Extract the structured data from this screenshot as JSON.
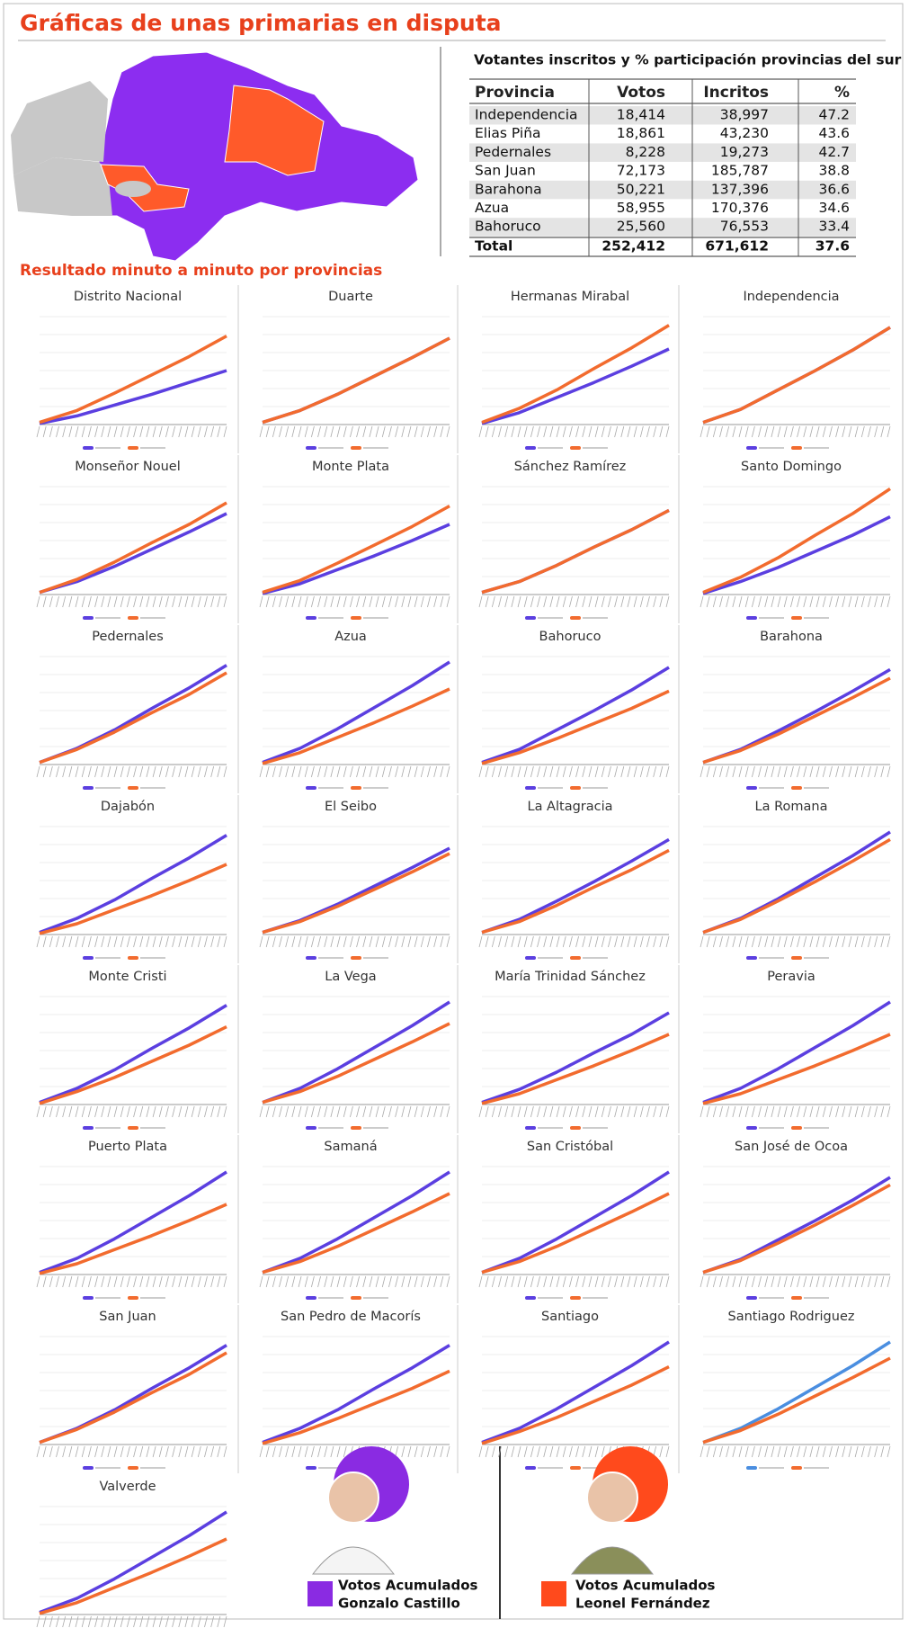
{
  "title": "Gráficas de unas primarias en disputa",
  "table": {
    "title": "Votantes inscritos y % participación provincias del sur",
    "header": [
      "Provincia",
      "Votos",
      "Incritos",
      "%"
    ],
    "rows": [
      [
        "Independencia",
        "18,414",
        "38,997",
        "47.2"
      ],
      [
        "Elias Piña",
        "18,861",
        "43,230",
        "43.6"
      ],
      [
        "Pedernales",
        "8,228",
        "19,273",
        "42.7"
      ],
      [
        "San Juan",
        "72,173",
        "185,787",
        "38.8"
      ],
      [
        "Barahona",
        "50,221",
        "137,396",
        "36.6"
      ],
      [
        "Azua",
        "58,955",
        "170,376",
        "34.6"
      ],
      [
        "Bahoruco",
        "25,560",
        "76,553",
        "33.4"
      ]
    ],
    "total": [
      "Total",
      "252,412",
      "671,612",
      "37.6"
    ]
  },
  "subtitle": "Resultado minuto a minuto por provincias",
  "chart_data": [
    {
      "type": "line",
      "title": "Distrito Nacional",
      "ylim": [
        0,
        100
      ],
      "series": [
        {
          "color": "#5b3fe0",
          "values": [
            1,
            8,
            18,
            28,
            39,
            50
          ]
        },
        {
          "color": "#f26b2e",
          "values": [
            2,
            13,
            29,
            46,
            63,
            82
          ]
        }
      ]
    },
    {
      "type": "line",
      "title": "Duarte",
      "ylim": [
        0,
        100
      ],
      "series": [
        {
          "color": "#5b3fe0",
          "values": [
            2,
            13,
            28,
            45,
            62,
            80
          ]
        },
        {
          "color": "#f26b2e",
          "values": [
            2,
            13,
            28,
            45,
            62,
            80
          ]
        }
      ]
    },
    {
      "type": "line",
      "title": "Hermanas Mirabal",
      "ylim": [
        0,
        100
      ],
      "series": [
        {
          "color": "#5b3fe0",
          "values": [
            1,
            11,
            25,
            39,
            54,
            70
          ]
        },
        {
          "color": "#f26b2e",
          "values": [
            2,
            15,
            32,
            52,
            71,
            92
          ]
        }
      ]
    },
    {
      "type": "line",
      "title": "Independencia",
      "ylim": [
        0,
        100
      ],
      "series": [
        {
          "color": "#5b3fe0",
          "values": [
            2,
            14,
            32,
            50,
            69,
            90
          ]
        },
        {
          "color": "#f26b2e",
          "values": [
            2,
            14,
            32,
            50,
            69,
            90
          ]
        }
      ]
    },
    {
      "type": "line",
      "title": "Monseñor Nouel",
      "ylim": [
        0,
        100
      ],
      "series": [
        {
          "color": "#5b3fe0",
          "values": [
            2,
            12,
            26,
            42,
            58,
            75
          ]
        },
        {
          "color": "#f26b2e",
          "values": [
            2,
            14,
            30,
            48,
            65,
            85
          ]
        }
      ]
    },
    {
      "type": "line",
      "title": "Monte Plata",
      "ylim": [
        0,
        100
      ],
      "series": [
        {
          "color": "#5b3fe0",
          "values": [
            1,
            10,
            23,
            36,
            50,
            65
          ]
        },
        {
          "color": "#f26b2e",
          "values": [
            2,
            13,
            29,
            46,
            63,
            82
          ]
        }
      ]
    },
    {
      "type": "line",
      "title": "Sánchez Ramírez",
      "ylim": [
        0,
        100
      ],
      "series": [
        {
          "color": "#5b3fe0",
          "values": [
            2,
            12,
            27,
            44,
            60,
            78
          ]
        },
        {
          "color": "#f26b2e",
          "values": [
            2,
            12,
            27,
            44,
            60,
            78
          ]
        }
      ]
    },
    {
      "type": "line",
      "title": "Santo Domingo",
      "ylim": [
        0,
        100
      ],
      "series": [
        {
          "color": "#5b3fe0",
          "values": [
            1,
            12,
            25,
            40,
            55,
            72
          ]
        },
        {
          "color": "#f26b2e",
          "values": [
            2,
            16,
            34,
            55,
            75,
            98
          ]
        }
      ]
    },
    {
      "type": "line",
      "title": "Pedernales",
      "ylim": [
        0,
        100
      ],
      "series": [
        {
          "color": "#5b3fe0",
          "values": [
            2,
            15,
            32,
            52,
            71,
            92
          ]
        },
        {
          "color": "#f26b2e",
          "values": [
            2,
            14,
            30,
            48,
            65,
            85
          ]
        }
      ]
    },
    {
      "type": "line",
      "title": "Azua",
      "ylim": [
        0,
        100
      ],
      "series": [
        {
          "color": "#5b3fe0",
          "values": [
            2,
            15,
            33,
            53,
            73,
            95
          ]
        },
        {
          "color": "#f26b2e",
          "values": [
            1,
            11,
            25,
            39,
            54,
            70
          ]
        }
      ]
    },
    {
      "type": "line",
      "title": "Bahoruco",
      "ylim": [
        0,
        100
      ],
      "series": [
        {
          "color": "#5b3fe0",
          "values": [
            2,
            14,
            32,
            50,
            69,
            90
          ]
        },
        {
          "color": "#f26b2e",
          "values": [
            1,
            11,
            24,
            38,
            52,
            68
          ]
        }
      ]
    },
    {
      "type": "line",
      "title": "Barahona",
      "ylim": [
        0,
        100
      ],
      "series": [
        {
          "color": "#5b3fe0",
          "values": [
            2,
            14,
            31,
            49,
            68,
            88
          ]
        },
        {
          "color": "#f26b2e",
          "values": [
            2,
            13,
            28,
            45,
            62,
            80
          ]
        }
      ]
    },
    {
      "type": "line",
      "title": "Dajabón",
      "ylim": [
        0,
        100
      ],
      "series": [
        {
          "color": "#5b3fe0",
          "values": [
            2,
            15,
            32,
            52,
            71,
            92
          ]
        },
        {
          "color": "#f26b2e",
          "values": [
            1,
            10,
            23,
            36,
            50,
            65
          ]
        }
      ]
    },
    {
      "type": "line",
      "title": "El Seibo",
      "ylim": [
        0,
        100
      ],
      "series": [
        {
          "color": "#5b3fe0",
          "values": [
            2,
            13,
            28,
            45,
            62,
            80
          ]
        },
        {
          "color": "#f26b2e",
          "values": [
            2,
            12,
            26,
            42,
            58,
            75
          ]
        }
      ]
    },
    {
      "type": "line",
      "title": "La Altagracia",
      "ylim": [
        0,
        100
      ],
      "series": [
        {
          "color": "#5b3fe0",
          "values": [
            2,
            14,
            31,
            49,
            68,
            88
          ]
        },
        {
          "color": "#f26b2e",
          "values": [
            2,
            12,
            27,
            44,
            60,
            78
          ]
        }
      ]
    },
    {
      "type": "line",
      "title": "La Romana",
      "ylim": [
        0,
        100
      ],
      "series": [
        {
          "color": "#5b3fe0",
          "values": [
            2,
            15,
            33,
            53,
            73,
            95
          ]
        },
        {
          "color": "#f26b2e",
          "values": [
            2,
            14,
            31,
            49,
            68,
            88
          ]
        }
      ]
    },
    {
      "type": "line",
      "title": "Monte Cristi",
      "ylim": [
        0,
        100
      ],
      "series": [
        {
          "color": "#5b3fe0",
          "values": [
            2,
            15,
            32,
            52,
            71,
            92
          ]
        },
        {
          "color": "#f26b2e",
          "values": [
            1,
            12,
            25,
            40,
            55,
            72
          ]
        }
      ]
    },
    {
      "type": "line",
      "title": "La Vega",
      "ylim": [
        0,
        100
      ],
      "series": [
        {
          "color": "#5b3fe0",
          "values": [
            2,
            15,
            33,
            53,
            73,
            95
          ]
        },
        {
          "color": "#f26b2e",
          "values": [
            2,
            12,
            26,
            42,
            58,
            75
          ]
        }
      ]
    },
    {
      "type": "line",
      "title": "María Trinidad Sánchez",
      "ylim": [
        0,
        100
      ],
      "series": [
        {
          "color": "#5b3fe0",
          "values": [
            2,
            14,
            30,
            48,
            65,
            85
          ]
        },
        {
          "color": "#f26b2e",
          "values": [
            1,
            10,
            23,
            36,
            50,
            65
          ]
        }
      ]
    },
    {
      "type": "line",
      "title": "Peravia",
      "ylim": [
        0,
        100
      ],
      "series": [
        {
          "color": "#5b3fe0",
          "values": [
            2,
            15,
            33,
            53,
            73,
            95
          ]
        },
        {
          "color": "#f26b2e",
          "values": [
            1,
            10,
            23,
            36,
            50,
            65
          ]
        }
      ]
    },
    {
      "type": "line",
      "title": "Puerto Plata",
      "ylim": [
        0,
        100
      ],
      "series": [
        {
          "color": "#5b3fe0",
          "values": [
            2,
            15,
            33,
            53,
            73,
            95
          ]
        },
        {
          "color": "#f26b2e",
          "values": [
            1,
            10,
            23,
            36,
            50,
            65
          ]
        }
      ]
    },
    {
      "type": "line",
      "title": "Samaná",
      "ylim": [
        0,
        100
      ],
      "series": [
        {
          "color": "#5b3fe0",
          "values": [
            2,
            15,
            33,
            53,
            73,
            95
          ]
        },
        {
          "color": "#f26b2e",
          "values": [
            2,
            12,
            26,
            42,
            58,
            75
          ]
        }
      ]
    },
    {
      "type": "line",
      "title": "San Cristóbal",
      "ylim": [
        0,
        100
      ],
      "series": [
        {
          "color": "#5b3fe0",
          "values": [
            2,
            15,
            33,
            53,
            73,
            95
          ]
        },
        {
          "color": "#f26b2e",
          "values": [
            2,
            12,
            26,
            42,
            58,
            75
          ]
        }
      ]
    },
    {
      "type": "line",
      "title": "San José de Ocoa",
      "ylim": [
        0,
        100
      ],
      "series": [
        {
          "color": "#5b3fe0",
          "values": [
            2,
            14,
            32,
            50,
            69,
            90
          ]
        },
        {
          "color": "#f26b2e",
          "values": [
            2,
            13,
            29,
            46,
            64,
            83
          ]
        }
      ]
    },
    {
      "type": "line",
      "title": "San Juan",
      "ylim": [
        0,
        100
      ],
      "series": [
        {
          "color": "#5b3fe0",
          "values": [
            2,
            15,
            32,
            52,
            71,
            92
          ]
        },
        {
          "color": "#f26b2e",
          "values": [
            2,
            14,
            30,
            48,
            65,
            85
          ]
        }
      ]
    },
    {
      "type": "line",
      "title": "San Pedro de Macorís",
      "ylim": [
        0,
        100
      ],
      "series": [
        {
          "color": "#5b3fe0",
          "values": [
            2,
            15,
            32,
            52,
            71,
            92
          ]
        },
        {
          "color": "#f26b2e",
          "values": [
            1,
            11,
            24,
            38,
            52,
            68
          ]
        }
      ]
    },
    {
      "type": "line",
      "title": "Santiago",
      "ylim": [
        0,
        100
      ],
      "series": [
        {
          "color": "#5b3fe0",
          "values": [
            2,
            15,
            33,
            53,
            73,
            95
          ]
        },
        {
          "color": "#f26b2e",
          "values": [
            1,
            12,
            25,
            40,
            55,
            72
          ]
        }
      ]
    },
    {
      "type": "line",
      "title": "Santiago Rodriguez",
      "ylim": [
        0,
        100
      ],
      "series": [
        {
          "color": "#4a8ee0",
          "values": [
            2,
            15,
            33,
            53,
            73,
            95
          ]
        },
        {
          "color": "#f26b2e",
          "values": [
            2,
            13,
            28,
            45,
            62,
            80
          ]
        }
      ]
    },
    {
      "type": "line",
      "title": "Valverde",
      "ylim": [
        0,
        100
      ],
      "series": [
        {
          "color": "#5b3fe0",
          "values": [
            2,
            15,
            33,
            53,
            73,
            95
          ]
        },
        {
          "color": "#f26b2e",
          "values": [
            1,
            11,
            25,
            39,
            54,
            70
          ]
        }
      ]
    }
  ],
  "legend": [
    {
      "line1": "Votos Acumulados",
      "line2": "Gonzalo Castillo",
      "color": "#8a2be2"
    },
    {
      "line1": "Votos Acumulados",
      "line2": "Leonel Fernández",
      "color": "#ff4a1c"
    }
  ]
}
